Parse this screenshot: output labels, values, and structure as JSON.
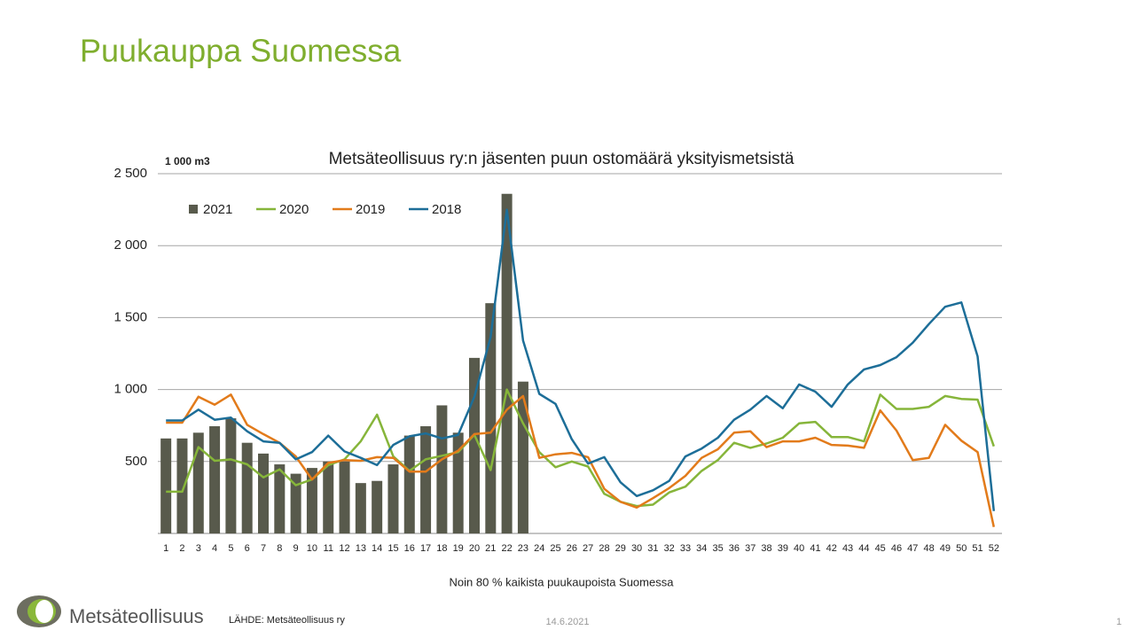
{
  "slide": {
    "title": "Puukauppa Suomessa",
    "logo": "Metsäteollisuus",
    "source": "LÄHDE:  Metsäteollisuus ry",
    "date": "14.6.2021",
    "page": "1"
  },
  "chart_data": {
    "type": "combo",
    "title": "Metsäteollisuus ry:n jäsenten puun ostomäärä yksityismetsistä",
    "unit_label": "1 000 m3",
    "x_label": "Noin 80 % kaikista puukaupoista Suomessa",
    "categories": [
      "1",
      "2",
      "3",
      "4",
      "5",
      "6",
      "7",
      "8",
      "9",
      "10",
      "11",
      "12",
      "13",
      "14",
      "15",
      "16",
      "17",
      "18",
      "19",
      "20",
      "21",
      "22",
      "23",
      "24",
      "25",
      "26",
      "27",
      "28",
      "29",
      "30",
      "31",
      "32",
      "33",
      "34",
      "35",
      "36",
      "37",
      "38",
      "39",
      "40",
      "41",
      "42",
      "43",
      "44",
      "45",
      "46",
      "47",
      "48",
      "49",
      "50",
      "51",
      "52"
    ],
    "ylim": [
      0,
      2500
    ],
    "yticks": [
      500,
      {
        "value": 1000,
        "label": "1 000"
      },
      {
        "value": 1500,
        "label": "1 500"
      },
      {
        "value": 2000,
        "label": "2 000"
      },
      {
        "value": 2500,
        "label": "2 500"
      }
    ],
    "grid": true,
    "legend": "upper left",
    "series": [
      {
        "name": "2021",
        "type": "bar",
        "color": "#585a4c",
        "values": [
          660,
          660,
          700,
          745,
          800,
          630,
          555,
          480,
          415,
          455,
          500,
          500,
          350,
          365,
          480,
          680,
          745,
          890,
          700,
          1220,
          1600,
          2360,
          1055,
          null,
          null,
          null,
          null,
          null,
          null,
          null,
          null,
          null,
          null,
          null,
          null,
          null,
          null,
          null,
          null,
          null,
          null,
          null,
          null,
          null,
          null,
          null,
          null,
          null,
          null,
          null,
          null,
          null
        ]
      },
      {
        "name": "2020",
        "type": "line",
        "color": "#86b53a",
        "values": [
          290,
          290,
          600,
          505,
          515,
          480,
          390,
          445,
          335,
          375,
          475,
          515,
          640,
          825,
          535,
          435,
          515,
          540,
          565,
          685,
          440,
          1000,
          765,
          565,
          460,
          500,
          465,
          275,
          220,
          190,
          200,
          285,
          325,
          435,
          510,
          630,
          595,
          625,
          665,
          765,
          775,
          670,
          670,
          640,
          965,
          865,
          865,
          880,
          955,
          935,
          930,
          605
        ]
      },
      {
        "name": "2019",
        "type": "line",
        "color": "#e27b1b",
        "values": [
          770,
          770,
          950,
          895,
          965,
          755,
          690,
          630,
          535,
          375,
          490,
          510,
          505,
          530,
          525,
          430,
          430,
          515,
          575,
          690,
          700,
          860,
          955,
          525,
          550,
          560,
          530,
          310,
          220,
          180,
          245,
          315,
          400,
          525,
          585,
          700,
          710,
          600,
          640,
          640,
          665,
          615,
          610,
          595,
          855,
          715,
          510,
          525,
          755,
          645,
          565,
          45
        ]
      },
      {
        "name": "2018",
        "type": "line",
        "color": "#1d6e98",
        "values": [
          785,
          785,
          860,
          790,
          805,
          710,
          640,
          630,
          515,
          565,
          680,
          570,
          525,
          475,
          615,
          675,
          695,
          660,
          685,
          950,
          1365,
          2250,
          1340,
          970,
          900,
          655,
          485,
          530,
          355,
          260,
          300,
          365,
          535,
          590,
          665,
          790,
          860,
          955,
          870,
          1035,
          985,
          880,
          1035,
          1140,
          1170,
          1225,
          1325,
          1455,
          1575,
          1605,
          1230,
          155
        ]
      }
    ]
  }
}
